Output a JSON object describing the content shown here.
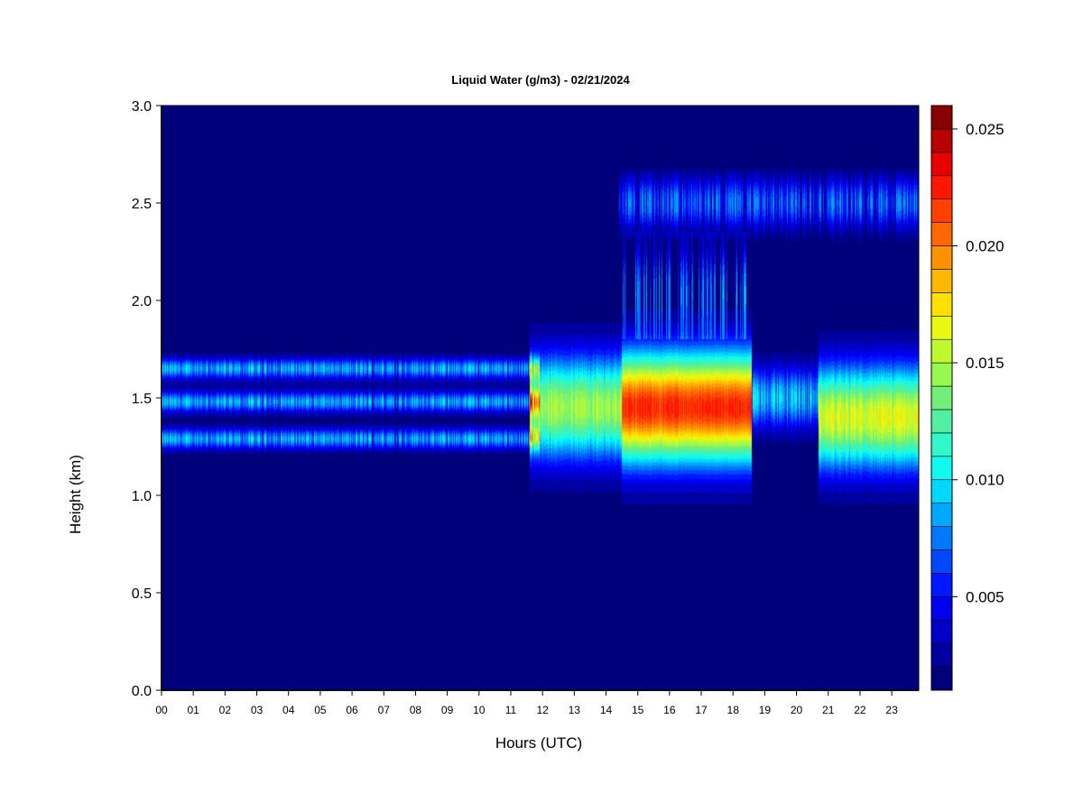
{
  "chart_data": {
    "type": "heatmap",
    "title": "Liquid Water (g/m3) - 02/21/2024",
    "xlabel": "Hours (UTC)",
    "ylabel": "Height (km)",
    "x_ticks": [
      "00",
      "01",
      "02",
      "03",
      "04",
      "05",
      "06",
      "07",
      "08",
      "09",
      "10",
      "11",
      "12",
      "13",
      "14",
      "15",
      "16",
      "17",
      "18",
      "19",
      "20",
      "21",
      "22",
      "23"
    ],
    "xlim": [
      0,
      23.85
    ],
    "y_ticks": [
      "0.0",
      "0.5",
      "1.0",
      "1.5",
      "2.0",
      "2.5",
      "3.0"
    ],
    "ylim": [
      0,
      3.0
    ],
    "colorbar": {
      "min": 0.001,
      "max": 0.026,
      "levels": 25,
      "ticks": [
        "0.005",
        "0.010",
        "0.015",
        "0.020",
        "0.025"
      ],
      "colors": [
        "#00007a",
        "#0000a0",
        "#0000c8",
        "#0000ee",
        "#0018ff",
        "#0048ff",
        "#0078ff",
        "#00a8ff",
        "#00d8ff",
        "#10f8f0",
        "#30f8c8",
        "#50f0a0",
        "#70f078",
        "#98f850",
        "#c0f830",
        "#e8f810",
        "#ffe000",
        "#ffb800",
        "#ff9000",
        "#ff6800",
        "#ff4000",
        "#ff1800",
        "#e80000",
        "#b80000",
        "#880000"
      ]
    },
    "features": [
      {
        "name": "low cloud layer 1",
        "t_start": 0,
        "t_end": 11.9,
        "height_km": 1.65,
        "peak": 0.0105
      },
      {
        "name": "low cloud layer 2",
        "t_start": 0,
        "t_end": 11.9,
        "height_km": 1.48,
        "peak": 0.0105
      },
      {
        "name": "low cloud layer 3",
        "t_start": 0,
        "t_end": 11.9,
        "height_km": 1.29,
        "peak": 0.0105
      },
      {
        "name": "mixed cloud",
        "t_start": 11.6,
        "t_end": 14.5,
        "height_km": 1.45,
        "peak": 0.016
      },
      {
        "name": "thick cloud",
        "t_start": 14.5,
        "t_end": 18.6,
        "height_km": 1.45,
        "peak": 0.023
      },
      {
        "name": "thin cloud",
        "t_start": 18.6,
        "t_end": 20.7,
        "height_km": 1.5,
        "peak": 0.0115
      },
      {
        "name": "late cloud",
        "t_start": 20.7,
        "t_end": 23.85,
        "height_km": 1.4,
        "peak": 0.0175
      },
      {
        "name": "upper cloud",
        "t_start": 14.4,
        "t_end": 23.85,
        "height_km": 2.5,
        "peak": 0.009
      }
    ]
  }
}
